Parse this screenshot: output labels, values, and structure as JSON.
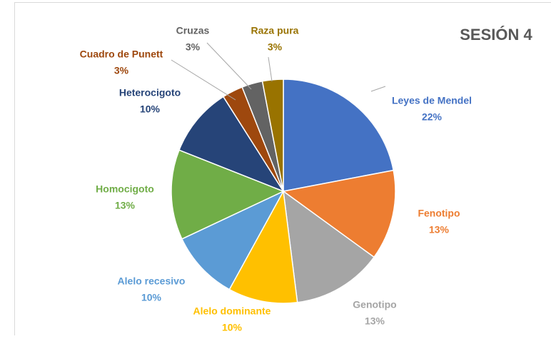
{
  "chart_data": {
    "type": "pie",
    "title": "SESIÓN 4",
    "categories": [
      "Leyes de Mendel",
      "Fenotipo",
      "Genotipo",
      "Alelo dominante",
      "Alelo recesivo",
      "Homocigoto",
      "Heterocigoto",
      "Cuadro de Punett",
      "Cruzas",
      "Raza pura"
    ],
    "values": [
      22,
      13,
      13,
      10,
      10,
      13,
      10,
      3,
      3,
      3
    ],
    "value_labels": [
      "22%",
      "13%",
      "13%",
      "10%",
      "10%",
      "13%",
      "10%",
      "3%",
      "3%",
      "3%"
    ],
    "colors": [
      "#4472c4",
      "#ed7d31",
      "#a5a5a5",
      "#ffc000",
      "#5b9bd5",
      "#70ad47",
      "#264478",
      "#9e480e",
      "#636363",
      "#997300"
    ]
  }
}
